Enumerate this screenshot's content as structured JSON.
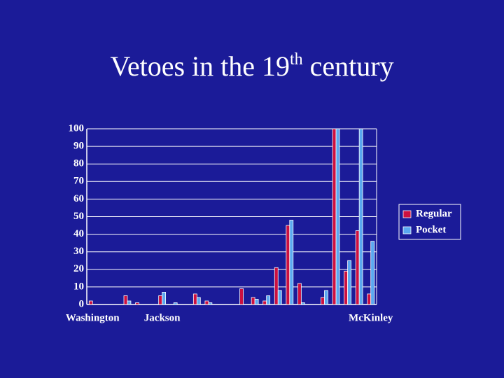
{
  "chart_data": {
    "type": "bar",
    "title": [
      "Vetoes in the 19",
      "th",
      "century"
    ],
    "categories": [
      "Washington",
      null,
      null,
      null,
      null,
      null,
      "Jackson",
      null,
      null,
      null,
      null,
      null,
      null,
      null,
      null,
      null,
      null,
      null,
      null,
      null,
      null,
      null,
      null,
      null,
      "McKinley"
    ],
    "series": [
      {
        "name": "Regular",
        "color": "#cc1040",
        "values": [
          2,
          0,
          0,
          5,
          1,
          0,
          5,
          0,
          0,
          6,
          2,
          0,
          0,
          9,
          4,
          2,
          21,
          45,
          12,
          0,
          4,
          100,
          19,
          42,
          6
        ]
      },
      {
        "name": "Pocket",
        "color": "#5aa8f0",
        "values": [
          0,
          0,
          0,
          2,
          0,
          0,
          7,
          1,
          0,
          4,
          1,
          0,
          0,
          0,
          3,
          5,
          8,
          48,
          1,
          0,
          8,
          100,
          25,
          100,
          36
        ]
      }
    ],
    "ylim": [
      0,
      100
    ],
    "yticks": [
      0,
      10,
      20,
      30,
      40,
      50,
      60,
      70,
      80,
      90,
      100
    ],
    "grid": true,
    "legend": "right"
  }
}
